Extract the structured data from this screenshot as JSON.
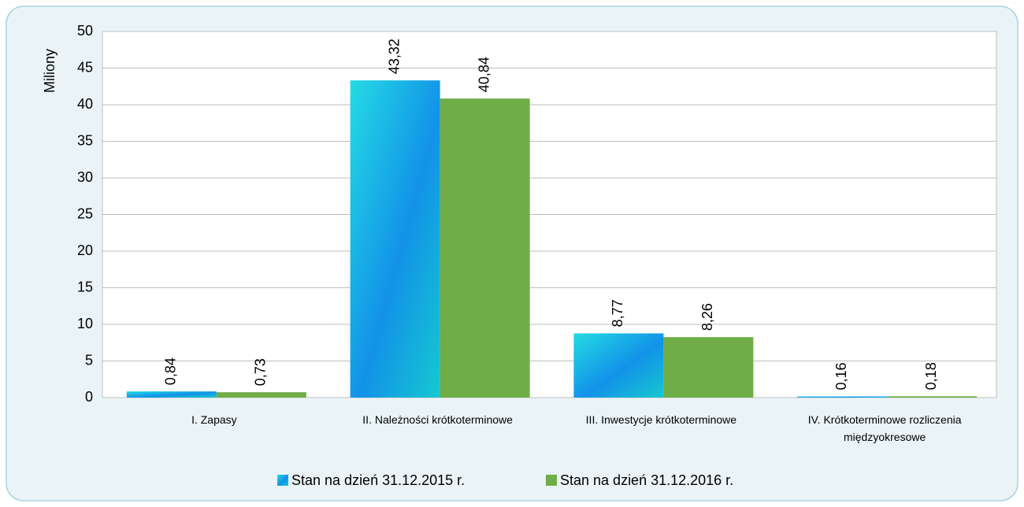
{
  "chart_data": {
    "type": "bar",
    "y_label": "Miliony",
    "categories": [
      "I. Zapasy",
      "II. Należności krótkoterminowe",
      "III. Inwestycje krótkoterminowe",
      "IV. Krótkoterminowe rozliczenia międzyokresowe"
    ],
    "series": [
      {
        "name": "Stan na dzień 31.12.2015 r.",
        "color": "#1292e8",
        "values": [
          0.84,
          43.32,
          8.77,
          0.16
        ],
        "value_labels": [
          "0,84",
          "43,32",
          "8,77",
          "0,16"
        ]
      },
      {
        "name": "Stan na dzień 31.12.2016 r.",
        "color": "#70ad47",
        "values": [
          0.73,
          40.84,
          8.26,
          0.18
        ],
        "value_labels": [
          "0,73",
          "40,84",
          "8,26",
          "0,18"
        ]
      }
    ],
    "ylim": [
      0,
      50
    ],
    "yticks": [
      0,
      5,
      10,
      15,
      20,
      25,
      30,
      35,
      40,
      45,
      50
    ],
    "grid": true,
    "legend": "bottom"
  }
}
